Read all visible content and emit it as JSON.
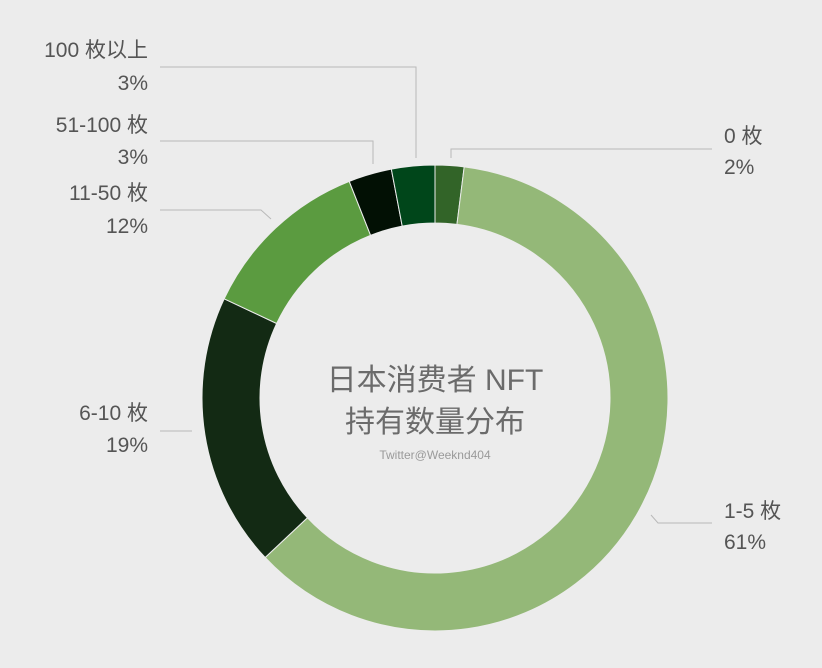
{
  "chart_data": {
    "type": "pie",
    "variant": "donut",
    "title_lines": [
      "日本消费者 NFT",
      "持有数量分布"
    ],
    "credit": "Twitter@Weeknd404",
    "categories": [
      "0 枚",
      "1-5 枚",
      "6-10 枚",
      "11-50 枚",
      "51-100 枚",
      "100 枚以上"
    ],
    "values": [
      2,
      61,
      19,
      12,
      3,
      3
    ],
    "value_labels": [
      "2%",
      "61%",
      "19%",
      "12%",
      "3%",
      "3%"
    ],
    "colors": [
      "#326428",
      "#94b878",
      "#132a14",
      "#5b9b40",
      "#021004",
      "#00461a"
    ]
  }
}
